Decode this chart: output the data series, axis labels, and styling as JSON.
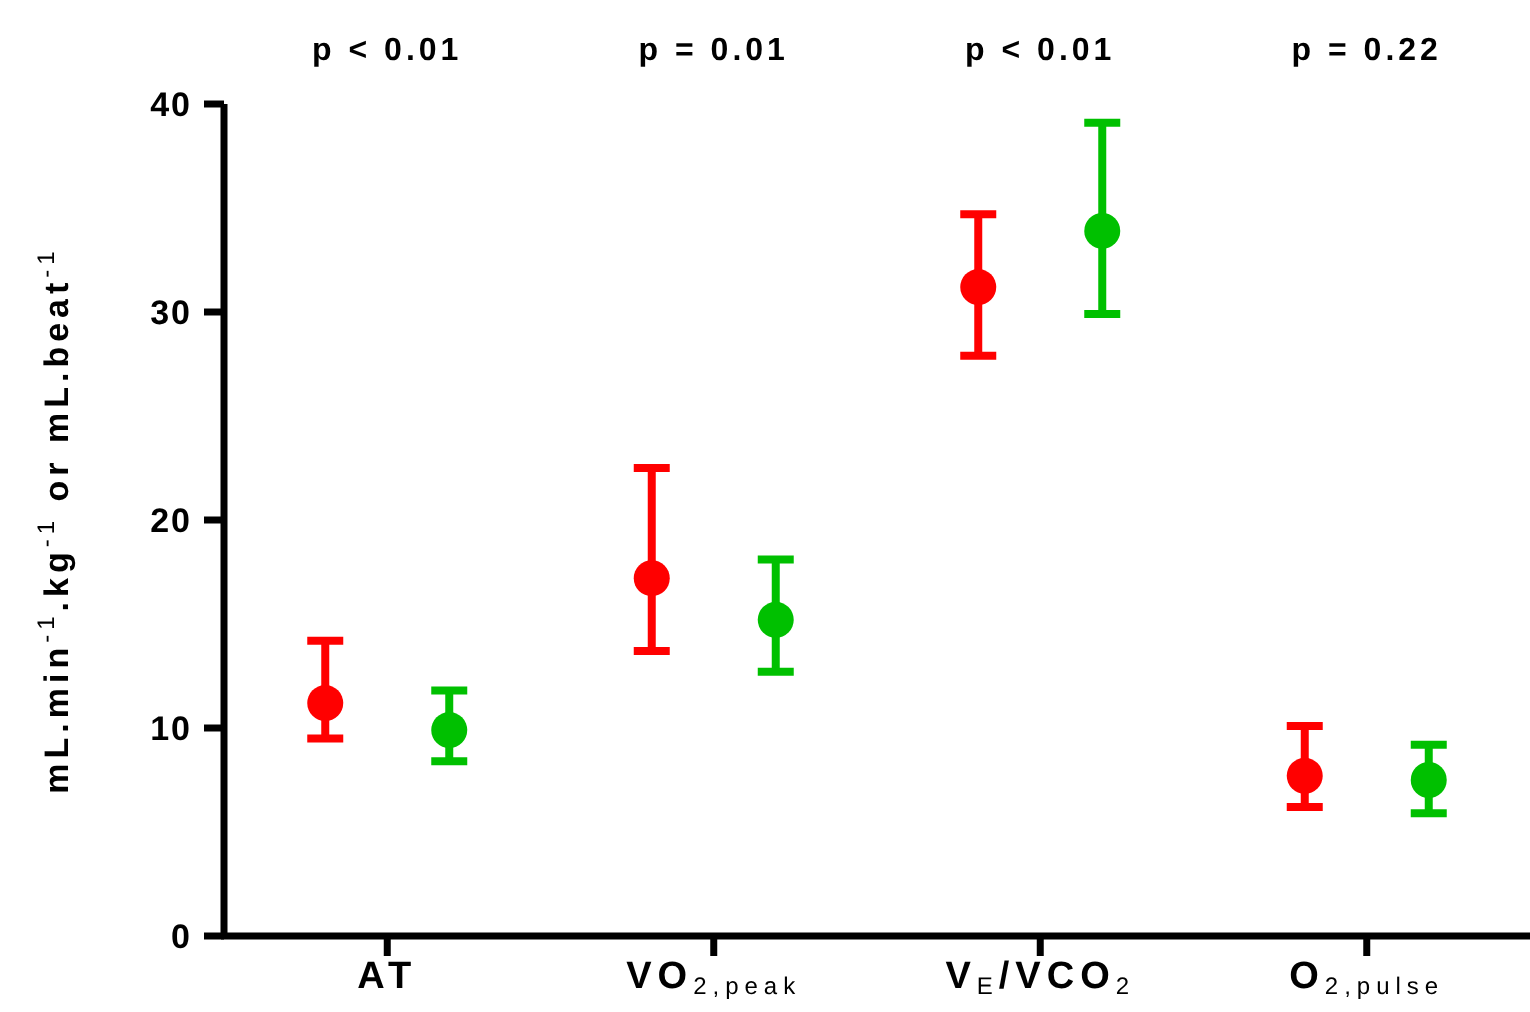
{
  "chart_data": {
    "type": "scatter",
    "ylabel": "mL.min$^{-1}$.kg$^{-1}$ or mL.beat$^{-1}$",
    "categories": [
      "AT",
      "VO$_{2,peak}$",
      "V$_{E}$/VCO$_{2}$",
      "O$_{2,pulse}$"
    ],
    "ylim": [
      0,
      40
    ],
    "yticks": [
      0,
      10,
      20,
      30,
      40
    ],
    "marker": "circle",
    "series": [
      {
        "color": "#ff0000",
        "values": [
          11.2,
          17.2,
          31.2,
          7.7
        ],
        "errors": [
          [
            9.5,
            14.2
          ],
          [
            13.7,
            22.5
          ],
          [
            27.9,
            34.7
          ],
          [
            6.2,
            10.1
          ]
        ]
      },
      {
        "color": "#00c000",
        "values": [
          9.9,
          15.2,
          33.9,
          7.5
        ],
        "errors": [
          [
            8.4,
            11.8
          ],
          [
            12.7,
            18.1
          ],
          [
            29.9,
            39.1
          ],
          [
            5.9,
            9.2
          ]
        ]
      }
    ],
    "annotations": [
      "p < 0.01",
      "p = 0.01",
      "p < 0.01",
      "p = 0.22"
    ]
  }
}
